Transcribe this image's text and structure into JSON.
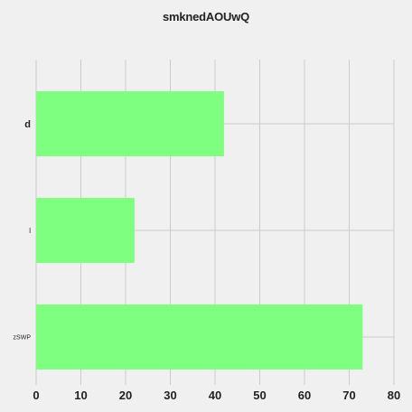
{
  "chart_data": {
    "type": "bar",
    "orientation": "horizontal",
    "title": "smknedAOUwQ",
    "xlabel": "",
    "ylabel": "",
    "categories": [
      "d",
      "l",
      "zSWP"
    ],
    "values": [
      42,
      22,
      73
    ],
    "xlim": [
      0,
      80
    ],
    "xticks": [
      0,
      10,
      20,
      30,
      40,
      50,
      60,
      70,
      80
    ],
    "grid": true,
    "legend": "none",
    "bar_color": "#7fff7f",
    "background_color": "#f0f0f0",
    "grid_color": "#cbcbcb"
  }
}
